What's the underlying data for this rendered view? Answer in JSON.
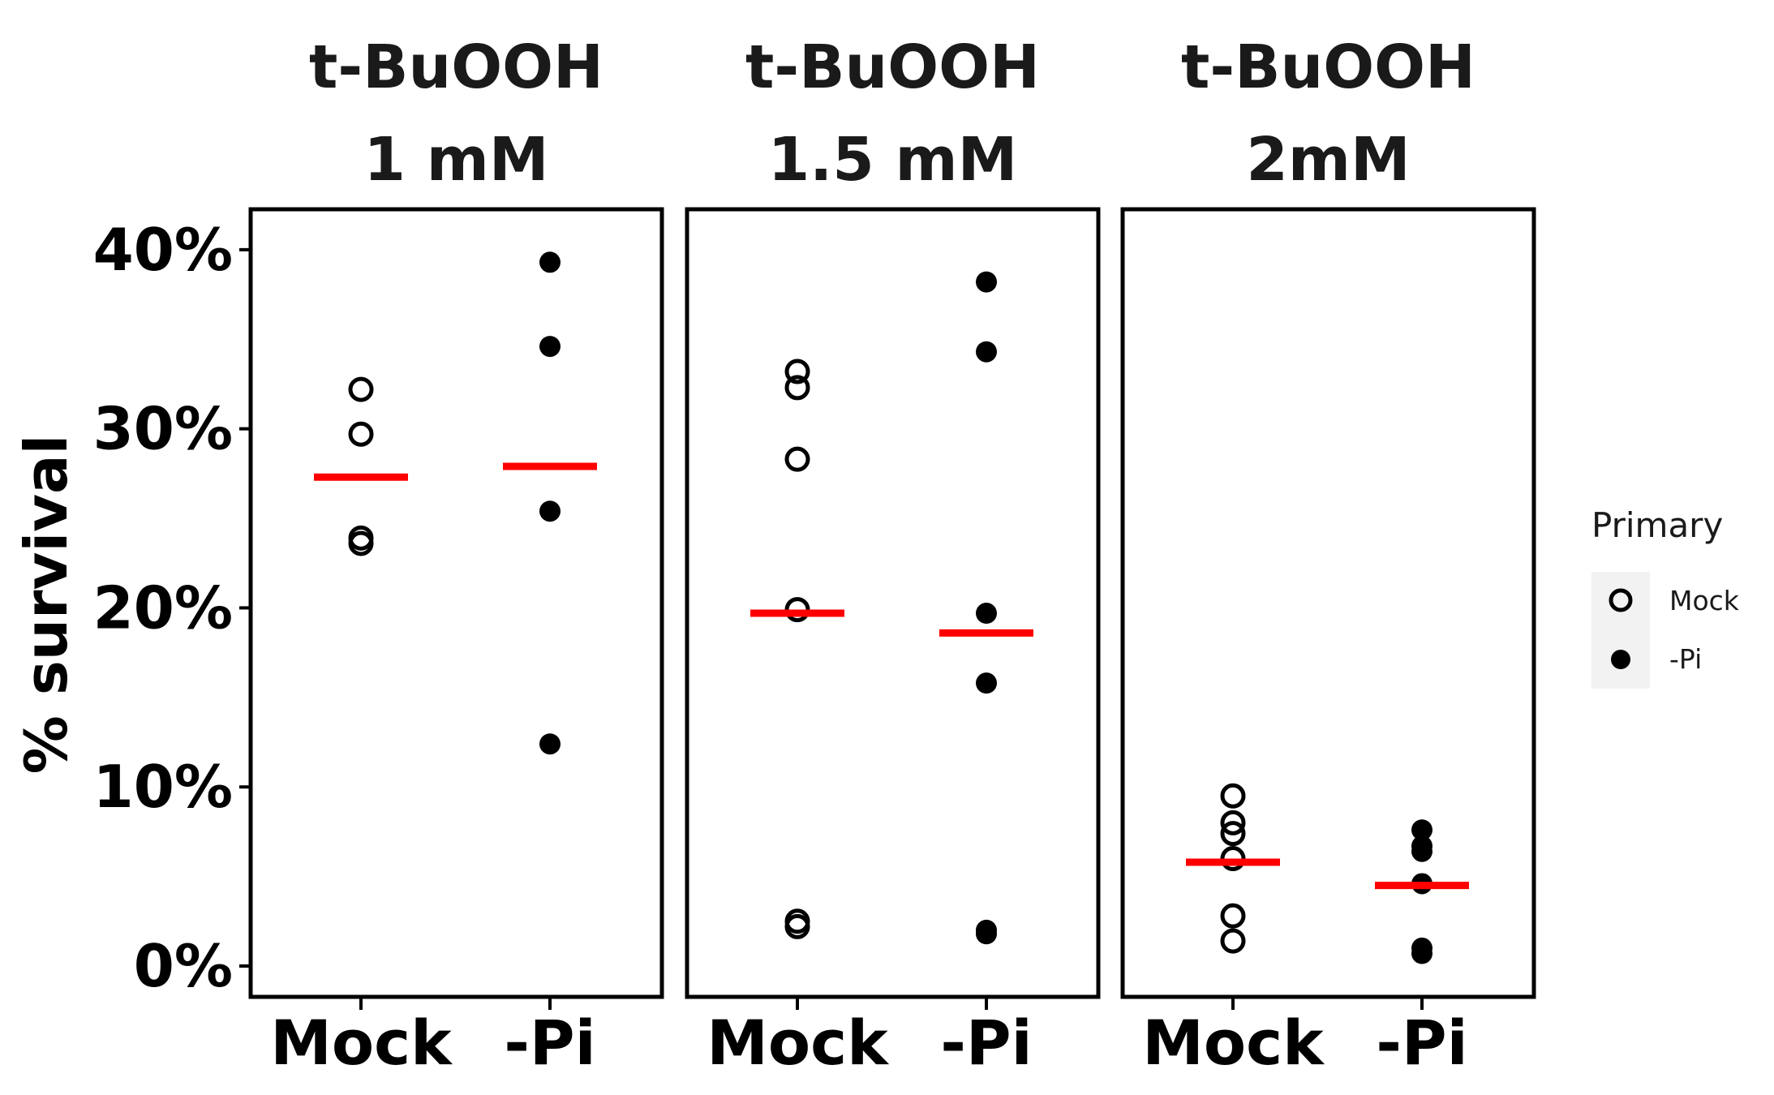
{
  "chart_data": {
    "type": "scatter",
    "title": "",
    "xlabel": "",
    "ylabel": "% survival",
    "ylim": [
      0,
      42
    ],
    "y_ticks": [
      0,
      10,
      20,
      30,
      40
    ],
    "y_tick_labels": [
      "0%",
      "10%",
      "20%",
      "30%",
      "40%"
    ],
    "categories": [
      "Mock",
      "-Pi"
    ],
    "grid": false,
    "legend": {
      "title": "Primary",
      "position": "right",
      "entries": [
        {
          "label": "Mock",
          "marker": "open-circle"
        },
        {
          "label": "-Pi",
          "marker": "filled-circle"
        }
      ]
    },
    "mean_line_color": "#ff0000",
    "point_color": "#000000",
    "panels": [
      {
        "title_line1": "t-BuOOH",
        "title_line2": "1 mM",
        "groups": [
          {
            "category": "Mock",
            "values": [
              32.2,
              29.7,
              23.9,
              23.6
            ],
            "mean": 27.3
          },
          {
            "category": "-Pi",
            "values": [
              39.3,
              34.6,
              25.4,
              12.4
            ],
            "mean": 27.9
          }
        ]
      },
      {
        "title_line1": "t-BuOOH",
        "title_line2": "1.5 mM",
        "groups": [
          {
            "category": "Mock",
            "values": [
              33.2,
              32.3,
              28.3,
              19.9,
              2.5,
              2.2
            ],
            "mean": 19.7
          },
          {
            "category": "-Pi",
            "values": [
              38.2,
              34.3,
              19.7,
              15.8,
              2.0,
              1.8
            ],
            "mean": 18.6
          }
        ]
      },
      {
        "title_line1": "t-BuOOH",
        "title_line2": "2mM",
        "groups": [
          {
            "category": "Mock",
            "values": [
              9.5,
              8.0,
              7.4,
              6.0,
              2.8,
              1.4
            ],
            "mean": 5.8
          },
          {
            "category": "-Pi",
            "values": [
              7.6,
              6.7,
              6.4,
              4.6,
              1.0,
              0.7
            ],
            "mean": 4.5
          }
        ]
      }
    ]
  }
}
